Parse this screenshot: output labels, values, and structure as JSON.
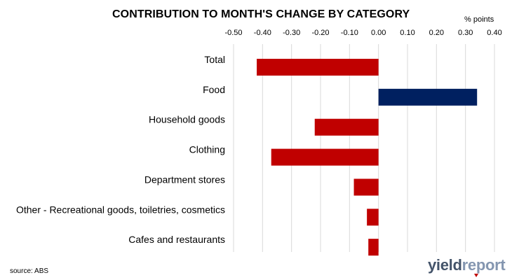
{
  "chart_data": {
    "type": "bar",
    "orientation": "horizontal",
    "title": "CONTRIBUTION TO MONTH'S CHANGE BY CATEGORY",
    "unit_label": "% points",
    "categories": [
      "Total",
      "Food",
      "Household goods",
      "Clothing",
      "Department stores",
      "Other - Recreational goods, toiletries, cosmetics",
      "Cafes and restaurants"
    ],
    "values": [
      -0.42,
      0.34,
      -0.22,
      -0.37,
      -0.085,
      -0.04,
      -0.035
    ],
    "x_ticks": [
      "-0.50",
      "-0.40",
      "-0.30",
      "-0.20",
      "-0.10",
      "0.00",
      "0.10",
      "0.20",
      "0.30",
      "0.40"
    ],
    "xlim": [
      -0.5,
      0.4
    ],
    "x_axis_position": "top",
    "grid": true,
    "legend": "none",
    "colors": {
      "negative": "#c00000",
      "positive": "#002060",
      "grid": "#d9d9d9"
    }
  },
  "source": "source: ABS",
  "logo": {
    "part1": "yield",
    "part2": "report"
  }
}
